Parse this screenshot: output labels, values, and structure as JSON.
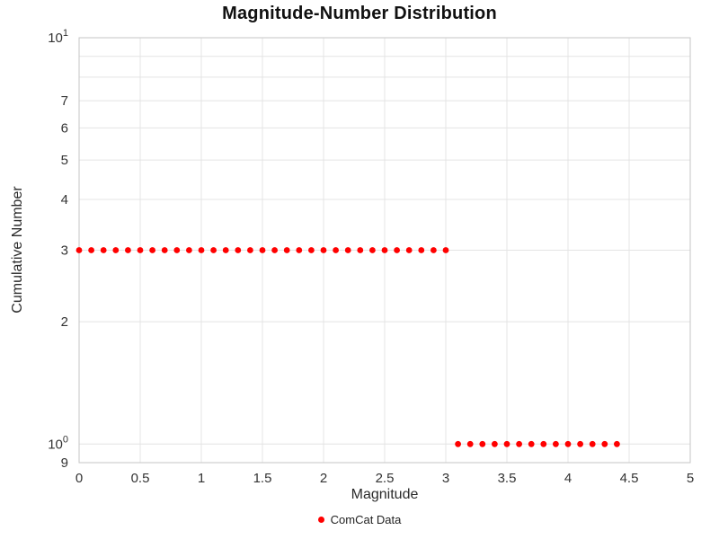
{
  "chart_data": {
    "type": "scatter",
    "title": "Magnitude-Number Distribution",
    "xlabel": "Magnitude",
    "ylabel": "Cumulative Number",
    "xlim": [
      0,
      5
    ],
    "ylim": [
      0.9,
      10
    ],
    "y_scale": "log",
    "grid": true,
    "legend_position": "bottom",
    "x_ticks": [
      {
        "value": 0,
        "label": "0"
      },
      {
        "value": 0.5,
        "label": "0.5"
      },
      {
        "value": 1,
        "label": "1"
      },
      {
        "value": 1.5,
        "label": "1.5"
      },
      {
        "value": 2,
        "label": "2"
      },
      {
        "value": 2.5,
        "label": "2.5"
      },
      {
        "value": 3,
        "label": "3"
      },
      {
        "value": 3.5,
        "label": "3.5"
      },
      {
        "value": 4,
        "label": "4"
      },
      {
        "value": 4.5,
        "label": "4.5"
      },
      {
        "value": 5,
        "label": "5"
      }
    ],
    "y_ticks": [
      {
        "value": 0.9,
        "label": "9"
      },
      {
        "value": 1,
        "label": "10",
        "exp": "0"
      },
      {
        "value": 2,
        "label": "2"
      },
      {
        "value": 3,
        "label": "3"
      },
      {
        "value": 4,
        "label": "4"
      },
      {
        "value": 5,
        "label": "5"
      },
      {
        "value": 6,
        "label": "6"
      },
      {
        "value": 7,
        "label": "7"
      },
      {
        "value": 8,
        "label": ""
      },
      {
        "value": 9,
        "label": ""
      },
      {
        "value": 10,
        "label": "10",
        "exp": "1"
      }
    ],
    "series": [
      {
        "name": "ComCat Data",
        "color": "#ff0000",
        "marker": "circle",
        "points": [
          [
            0.0,
            3
          ],
          [
            0.1,
            3
          ],
          [
            0.2,
            3
          ],
          [
            0.3,
            3
          ],
          [
            0.4,
            3
          ],
          [
            0.5,
            3
          ],
          [
            0.6,
            3
          ],
          [
            0.7,
            3
          ],
          [
            0.8,
            3
          ],
          [
            0.9,
            3
          ],
          [
            1.0,
            3
          ],
          [
            1.1,
            3
          ],
          [
            1.2,
            3
          ],
          [
            1.3,
            3
          ],
          [
            1.4,
            3
          ],
          [
            1.5,
            3
          ],
          [
            1.6,
            3
          ],
          [
            1.7,
            3
          ],
          [
            1.8,
            3
          ],
          [
            1.9,
            3
          ],
          [
            2.0,
            3
          ],
          [
            2.1,
            3
          ],
          [
            2.2,
            3
          ],
          [
            2.3,
            3
          ],
          [
            2.4,
            3
          ],
          [
            2.5,
            3
          ],
          [
            2.6,
            3
          ],
          [
            2.7,
            3
          ],
          [
            2.8,
            3
          ],
          [
            2.9,
            3
          ],
          [
            3.0,
            3
          ],
          [
            3.1,
            1
          ],
          [
            3.2,
            1
          ],
          [
            3.3,
            1
          ],
          [
            3.4,
            1
          ],
          [
            3.5,
            1
          ],
          [
            3.6,
            1
          ],
          [
            3.7,
            1
          ],
          [
            3.8,
            1
          ],
          [
            3.9,
            1
          ],
          [
            4.0,
            1
          ],
          [
            4.1,
            1
          ],
          [
            4.2,
            1
          ],
          [
            4.3,
            1
          ],
          [
            4.4,
            1
          ]
        ]
      }
    ]
  }
}
